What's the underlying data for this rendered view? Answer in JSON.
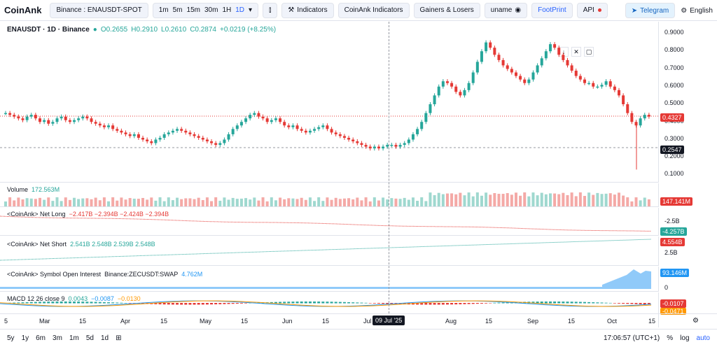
{
  "app": {
    "logo": "CoinAnk"
  },
  "toolbar": {
    "symbol": "Binance : ENAUSDT-SPOT",
    "timeframes": [
      "1m",
      "5m",
      "15m",
      "30m",
      "1H"
    ],
    "interval": "1D",
    "indicators": "Indicators",
    "coinank_indicators": "CoinAnk Indicators",
    "gainers": "Gainers & Losers",
    "user": "uname",
    "footprint": "FootPrint",
    "api": "API",
    "telegram": "Telegram",
    "language": "English"
  },
  "main": {
    "title": "ENAUSDT · 1D · Binance",
    "ohlc": {
      "o": "O0.2655",
      "h": "H0.2910",
      "l": "L0.2610",
      "c": "C0.2874",
      "chg": "+0.0219 (+8.25%)"
    },
    "y_labels": [
      "0.9000",
      "0.8000",
      "0.7000",
      "0.6000",
      "0.5000",
      "0.4000",
      "0.3000",
      "0.2000",
      "0.1000"
    ],
    "price_tag": "0.4327",
    "cross_tag": "0.2547"
  },
  "volume": {
    "label": "Volume",
    "value": "172.563M",
    "tag": "147.141M"
  },
  "net_long": {
    "label": "<CoinAnk> Net Long",
    "values": "−2.417B  −2.394B  −2.424B  −2.394B",
    "axis": "-2.5B",
    "tag": "-4.257B"
  },
  "net_short": {
    "label": "<CoinAnk> Net Short",
    "values": "2.541B  2.548B  2.539B  2.548B",
    "axis": "2.5B",
    "tag": "4.554B"
  },
  "oi": {
    "label": "<CoinAnk> Symbol Open Interest",
    "source": "Binance:ZECUSDT:SWAP",
    "value": "4.762M",
    "axis": "0",
    "tag": "93.146M"
  },
  "macd": {
    "label": "MACD 12 26 close 9",
    "v1": "0.0043",
    "v2": "−0.0087",
    "v3": "−0.0130",
    "tag1": "-0.0107",
    "tag2": "-0.0471"
  },
  "timeaxis": {
    "labels": [
      "5",
      "Mar",
      "15",
      "Apr",
      "15",
      "May",
      "15",
      "Jun",
      "15",
      "Jul",
      "Aug",
      "15",
      "Sep",
      "15",
      "Oct",
      "15"
    ],
    "cross_date": "09 Jul '25"
  },
  "bottom": {
    "ranges": [
      "5y",
      "1y",
      "6m",
      "3m",
      "1m",
      "5d",
      "1d"
    ],
    "clock": "17:06:57 (UTC+1)",
    "pct": "%",
    "log": "log",
    "auto": "auto"
  },
  "colors": {
    "up": "#26a69a",
    "down": "#e53935",
    "oi": "#90caf9",
    "accent": "#2962ff"
  },
  "candles": [
    0.45,
    0.44,
    0.43,
    0.42,
    0.41,
    0.43,
    0.44,
    0.42,
    0.4,
    0.41,
    0.39,
    0.4,
    0.42,
    0.43,
    0.41,
    0.4,
    0.41,
    0.42,
    0.43,
    0.42,
    0.4,
    0.39,
    0.38,
    0.37,
    0.38,
    0.36,
    0.35,
    0.34,
    0.33,
    0.32,
    0.33,
    0.31,
    0.3,
    0.29,
    0.28,
    0.3,
    0.31,
    0.33,
    0.34,
    0.35,
    0.36,
    0.35,
    0.34,
    0.33,
    0.32,
    0.31,
    0.3,
    0.29,
    0.28,
    0.27,
    0.28,
    0.3,
    0.33,
    0.36,
    0.38,
    0.4,
    0.42,
    0.44,
    0.45,
    0.43,
    0.42,
    0.4,
    0.41,
    0.42,
    0.4,
    0.38,
    0.37,
    0.38,
    0.36,
    0.35,
    0.34,
    0.35,
    0.36,
    0.37,
    0.38,
    0.36,
    0.34,
    0.33,
    0.32,
    0.31,
    0.3,
    0.29,
    0.28,
    0.27,
    0.26,
    0.25,
    0.26,
    0.25,
    0.26,
    0.27,
    0.27,
    0.26,
    0.27,
    0.28,
    0.3,
    0.33,
    0.36,
    0.4,
    0.45,
    0.5,
    0.55,
    0.6,
    0.63,
    0.62,
    0.6,
    0.57,
    0.55,
    0.58,
    0.62,
    0.68,
    0.74,
    0.8,
    0.85,
    0.82,
    0.78,
    0.75,
    0.72,
    0.7,
    0.68,
    0.66,
    0.64,
    0.62,
    0.64,
    0.68,
    0.72,
    0.76,
    0.8,
    0.84,
    0.82,
    0.78,
    0.75,
    0.72,
    0.69,
    0.66,
    0.64,
    0.62,
    0.62,
    0.6,
    0.6,
    0.61,
    0.63,
    0.6,
    0.58,
    0.55,
    0.5,
    0.45,
    0.4,
    0.38,
    0.42,
    0.44,
    0.43
  ]
}
